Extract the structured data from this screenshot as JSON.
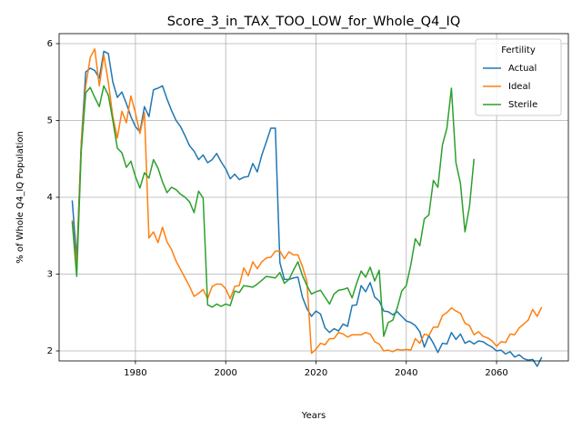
{
  "chart_data": {
    "type": "line",
    "title": "Score_3_in_TAX_TOO_LOW_for_Whole_Q4_IQ",
    "x_label": "Years",
    "y_label": "% of Whole Q4_IQ Population",
    "legend_title": "Fertility",
    "legend_position": "upper right",
    "grid": true,
    "xlim": [
      1963.1,
      2075.9
    ],
    "ylim": [
      1.87,
      6.13
    ],
    "xticks": [
      1980,
      2000,
      2020,
      2040,
      2060
    ],
    "yticks": [
      2,
      3,
      4,
      5,
      6
    ],
    "x": [
      1966,
      1967,
      1968,
      1969,
      1970,
      1971,
      1972,
      1973,
      1974,
      1975,
      1976,
      1977,
      1978,
      1979,
      1980,
      1981,
      1982,
      1983,
      1984,
      1985,
      1986,
      1987,
      1988,
      1989,
      1990,
      1991,
      1992,
      1993,
      1994,
      1995,
      1996,
      1997,
      1998,
      1999,
      2000,
      2001,
      2002,
      2003,
      2004,
      2005,
      2006,
      2007,
      2008,
      2009,
      2010,
      2011,
      2012,
      2013,
      2014,
      2015,
      2016,
      2017,
      2018,
      2019,
      2020,
      2021,
      2022,
      2023,
      2024,
      2025,
      2026,
      2027,
      2028,
      2029,
      2030,
      2031,
      2032,
      2033,
      2034,
      2035,
      2036,
      2037,
      2038,
      2039,
      2040,
      2041,
      2042,
      2043,
      2044,
      2045,
      2046,
      2047,
      2048,
      2049,
      2050,
      2051,
      2052,
      2053,
      2054,
      2055,
      2056,
      2057,
      2058,
      2059,
      2060,
      2061,
      2062,
      2063,
      2064,
      2065,
      2066,
      2067,
      2068,
      2069,
      2070
    ],
    "series": [
      {
        "name": "Actual",
        "color": "#1f77b4",
        "values": [
          3.96,
          3.2,
          4.7,
          5.63,
          5.68,
          5.65,
          5.55,
          5.9,
          5.87,
          5.5,
          5.3,
          5.37,
          5.22,
          5.05,
          4.92,
          4.85,
          5.18,
          5.05,
          5.4,
          5.42,
          5.45,
          5.28,
          5.13,
          5.0,
          4.92,
          4.8,
          4.67,
          4.6,
          4.49,
          4.55,
          4.45,
          4.49,
          4.57,
          4.46,
          4.37,
          4.24,
          4.3,
          4.23,
          4.26,
          4.27,
          4.44,
          4.33,
          4.55,
          4.72,
          4.9,
          4.9,
          3.15,
          2.93,
          2.93,
          2.95,
          2.96,
          2.7,
          2.55,
          2.45,
          2.52,
          2.48,
          2.3,
          2.24,
          2.29,
          2.26,
          2.35,
          2.32,
          2.59,
          2.6,
          2.85,
          2.77,
          2.89,
          2.7,
          2.65,
          2.52,
          2.51,
          2.47,
          2.51,
          2.45,
          2.39,
          2.37,
          2.33,
          2.25,
          2.05,
          2.2,
          2.1,
          1.98,
          2.1,
          2.09,
          2.24,
          2.15,
          2.22,
          2.1,
          2.13,
          2.09,
          2.13,
          2.12,
          2.08,
          2.05,
          2.0,
          2.01,
          1.96,
          1.99,
          1.92,
          1.95,
          1.9,
          1.88,
          1.89,
          1.8,
          1.92
        ]
      },
      {
        "name": "Ideal",
        "color": "#ff7f0e",
        "values": [
          3.7,
          3.1,
          4.7,
          5.45,
          5.82,
          5.93,
          5.45,
          5.85,
          5.5,
          5.05,
          4.77,
          5.12,
          4.97,
          5.32,
          5.1,
          4.83,
          5.1,
          3.47,
          3.55,
          3.41,
          3.61,
          3.42,
          3.32,
          3.17,
          3.06,
          2.95,
          2.84,
          2.71,
          2.75,
          2.8,
          2.68,
          2.84,
          2.87,
          2.87,
          2.81,
          2.68,
          2.84,
          2.85,
          3.08,
          2.98,
          3.16,
          3.07,
          3.16,
          3.21,
          3.22,
          3.3,
          3.3,
          3.2,
          3.29,
          3.25,
          3.25,
          3.1,
          2.9,
          1.97,
          2.02,
          2.1,
          2.08,
          2.16,
          2.16,
          2.24,
          2.22,
          2.18,
          2.21,
          2.21,
          2.21,
          2.24,
          2.22,
          2.12,
          2.09,
          2.0,
          2.01,
          1.99,
          2.02,
          2.01,
          2.02,
          2.01,
          2.16,
          2.1,
          2.22,
          2.2,
          2.31,
          2.31,
          2.46,
          2.5,
          2.56,
          2.52,
          2.49,
          2.36,
          2.33,
          2.21,
          2.25,
          2.19,
          2.17,
          2.13,
          2.06,
          2.12,
          2.11,
          2.22,
          2.21,
          2.3,
          2.35,
          2.4,
          2.54,
          2.45,
          2.57
        ]
      },
      {
        "name": "Sterile",
        "color": "#2ca02c",
        "values": [
          3.68,
          2.97,
          4.6,
          5.36,
          5.43,
          5.3,
          5.18,
          5.45,
          5.33,
          5.0,
          4.64,
          4.58,
          4.39,
          4.47,
          4.27,
          4.12,
          4.32,
          4.25,
          4.49,
          4.38,
          4.2,
          4.06,
          4.13,
          4.1,
          4.04,
          4.0,
          3.94,
          3.8,
          4.08,
          3.99,
          2.6,
          2.57,
          2.61,
          2.58,
          2.61,
          2.59,
          2.78,
          2.76,
          2.85,
          2.84,
          2.83,
          2.87,
          2.92,
          2.97,
          2.96,
          2.95,
          3.02,
          2.88,
          2.93,
          3.05,
          3.16,
          2.98,
          2.85,
          2.74,
          2.77,
          2.79,
          2.7,
          2.61,
          2.74,
          2.79,
          2.8,
          2.82,
          2.69,
          2.88,
          3.04,
          2.96,
          3.09,
          2.91,
          3.05,
          2.19,
          2.37,
          2.4,
          2.56,
          2.78,
          2.85,
          3.12,
          3.46,
          3.37,
          3.72,
          3.77,
          4.22,
          4.13,
          4.68,
          4.9,
          5.42,
          4.45,
          4.18,
          3.55,
          3.88,
          4.5,
          null,
          null,
          null,
          null,
          null,
          null,
          null,
          null,
          null,
          null,
          null,
          null,
          null,
          null,
          null
        ]
      }
    ]
  }
}
